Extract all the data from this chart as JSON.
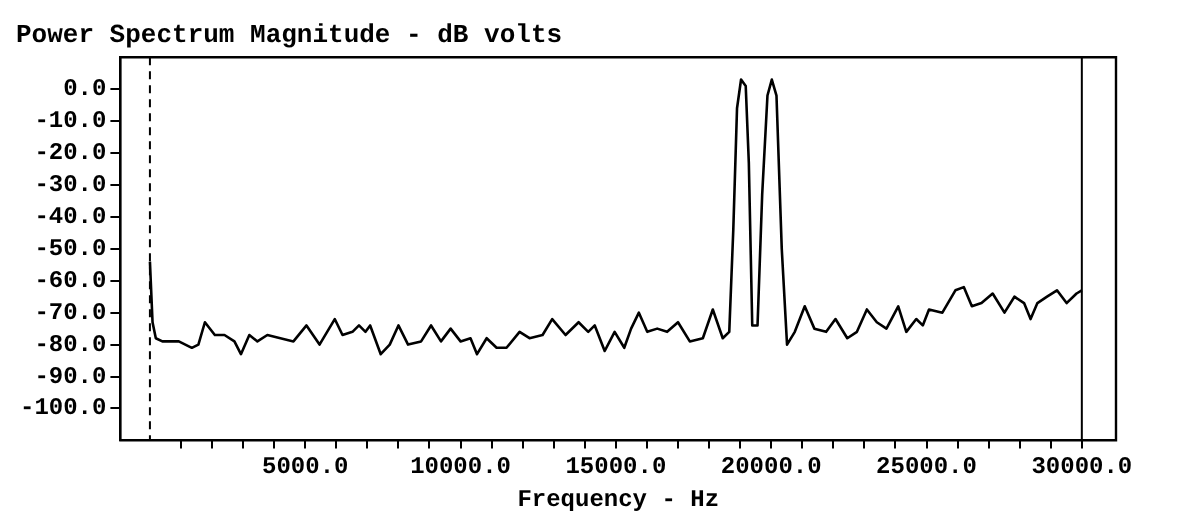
{
  "chart_data": {
    "type": "line",
    "title": "Power Spectrum Magnitude - dB volts",
    "xlabel": "Frequency - Hz",
    "x": [
      0,
      84,
      190,
      400,
      930,
      1350,
      1560,
      1770,
      2090,
      2400,
      2720,
      2930,
      3200,
      3460,
      3780,
      4200,
      4620,
      5040,
      5460,
      5950,
      6200,
      6520,
      6730,
      6940,
      7090,
      7430,
      7720,
      8000,
      8310,
      8730,
      9050,
      9370,
      9680,
      10000,
      10320,
      10530,
      10840,
      11160,
      11480,
      11900,
      12220,
      12640,
      12950,
      13380,
      13800,
      14110,
      14320,
      14640,
      14960,
      15270,
      15490,
      15740,
      16010,
      16330,
      16650,
      17000,
      17380,
      17800,
      18120,
      18440,
      18650,
      18780,
      18900,
      19030,
      19180,
      19280,
      19390,
      19560,
      19710,
      19880,
      20020,
      20170,
      20340,
      20510,
      20760,
      21080,
      21390,
      21770,
      22070,
      22450,
      22760,
      23080,
      23400,
      23710,
      24090,
      24350,
      24670,
      24880,
      25080,
      25510,
      25930,
      26200,
      26460,
      26770,
      27130,
      27510,
      27830,
      28140,
      28350,
      28570,
      28880,
      29200,
      29510,
      29830,
      30000
    ],
    "series": [
      {
        "color": "#000000",
        "values": [
          -54,
          -73,
          -78,
          -79,
          -79,
          -81,
          -80,
          -73,
          -77,
          -77,
          -79,
          -83,
          -77,
          -79,
          -77,
          -78,
          -79,
          -74,
          -80,
          -72,
          -77,
          -76,
          -74,
          -76,
          -74,
          -83,
          -80,
          -74,
          -80,
          -79,
          -74,
          -79,
          -75,
          -79,
          -78,
          -83,
          -78,
          -81,
          -81,
          -76,
          -78,
          -77,
          -72,
          -77,
          -73,
          -76,
          -74,
          -82,
          -76,
          -81,
          -75,
          -70,
          -76,
          -75,
          -76,
          -73,
          -79,
          -78,
          -69,
          -78,
          -76,
          -44,
          -6,
          3,
          1,
          -23,
          -74,
          -74,
          -33,
          -2,
          3,
          -2,
          -50,
          -80,
          -76,
          -68,
          -75,
          -76,
          -72,
          -78,
          -76,
          -69,
          -73,
          -75,
          -68,
          -76,
          -72,
          -74,
          -69,
          -70,
          -63,
          -62,
          -68,
          -67,
          -64,
          -70,
          -65,
          -67,
          -72,
          -67,
          -65,
          -63,
          -67,
          -64,
          -63
        ]
      }
    ],
    "xlim": [
      -950,
      31100
    ],
    "ylim": [
      -110,
      10
    ],
    "xticks": [
      {
        "value": 1000,
        "label": null
      },
      {
        "value": 2000,
        "label": null
      },
      {
        "value": 3000,
        "label": null
      },
      {
        "value": 4000,
        "label": null
      },
      {
        "value": 5000,
        "label": "5000.0"
      },
      {
        "value": 6000,
        "label": null
      },
      {
        "value": 7000,
        "label": null
      },
      {
        "value": 8000,
        "label": null
      },
      {
        "value": 9000,
        "label": null
      },
      {
        "value": 10000,
        "label": "10000.0"
      },
      {
        "value": 11000,
        "label": null
      },
      {
        "value": 12000,
        "label": null
      },
      {
        "value": 13000,
        "label": null
      },
      {
        "value": 14000,
        "label": null
      },
      {
        "value": 15000,
        "label": "15000.0"
      },
      {
        "value": 16000,
        "label": null
      },
      {
        "value": 17000,
        "label": null
      },
      {
        "value": 18000,
        "label": null
      },
      {
        "value": 19000,
        "label": null
      },
      {
        "value": 20000,
        "label": "20000.0"
      },
      {
        "value": 21000,
        "label": null
      },
      {
        "value": 22000,
        "label": null
      },
      {
        "value": 23000,
        "label": null
      },
      {
        "value": 24000,
        "label": null
      },
      {
        "value": 25000,
        "label": "25000.0"
      },
      {
        "value": 26000,
        "label": null
      },
      {
        "value": 27000,
        "label": null
      },
      {
        "value": 28000,
        "label": null
      },
      {
        "value": 29000,
        "label": null
      },
      {
        "value": 30000,
        "label": "30000.0"
      }
    ],
    "yticks": [
      {
        "value": 0,
        "label": "0.0"
      },
      {
        "value": -10,
        "label": "-10.0"
      },
      {
        "value": -20,
        "label": "-20.0"
      },
      {
        "value": -30,
        "label": "-30.0"
      },
      {
        "value": -40,
        "label": "-40.0"
      },
      {
        "value": -50,
        "label": "-50.0"
      },
      {
        "value": -60,
        "label": "-60.0"
      },
      {
        "value": -70,
        "label": "-70.0"
      },
      {
        "value": -80,
        "label": "-80.0"
      },
      {
        "value": -90,
        "label": "-90.0"
      },
      {
        "value": -100,
        "label": "-100.0"
      }
    ],
    "ref_lines": [
      {
        "axis": "x",
        "value": 0,
        "color": "#000000",
        "line_style": "dashed"
      },
      {
        "axis": "x",
        "value": 30000,
        "color": "#000000",
        "line_style": "solid"
      }
    ],
    "grid": false,
    "legend": false,
    "marker": "none",
    "line_style": "solid"
  }
}
